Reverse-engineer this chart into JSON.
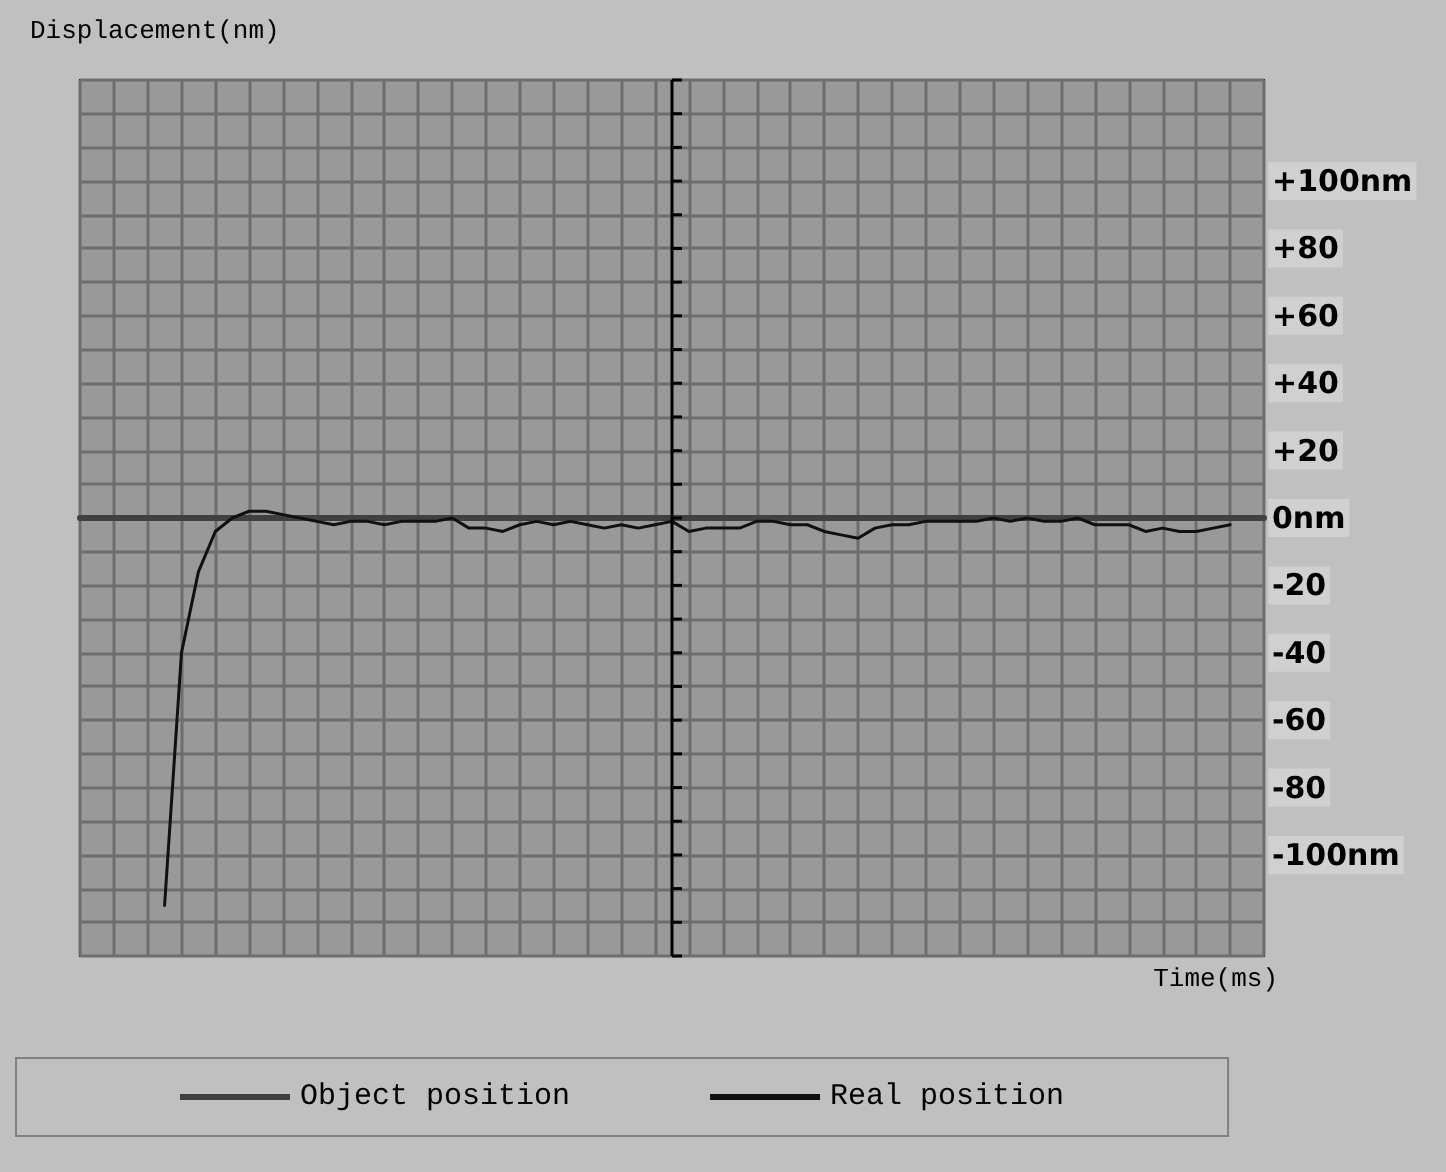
{
  "chart_data": {
    "type": "line",
    "xlabel": "Time(ms)",
    "ylabel": "Displacement(nm)",
    "categories": [
      null,
      null,
      null,
      null,
      null,
      null,
      null,
      null,
      null,
      null,
      null,
      null,
      null,
      null,
      null,
      null,
      null,
      null,
      null,
      null,
      null,
      null,
      null,
      null,
      null,
      null,
      null,
      null,
      null,
      null,
      null,
      null,
      null,
      null,
      null,
      null,
      null,
      null,
      null,
      null,
      null,
      null,
      null,
      null,
      null,
      null,
      null,
      null,
      null,
      null,
      null,
      null,
      null,
      null,
      null,
      null,
      null,
      null,
      null,
      null,
      null,
      null,
      null,
      null,
      null,
      null,
      null,
      null,
      null,
      null,
      null
    ],
    "series": [
      {
        "name": "Object position",
        "color": "#404040",
        "values": [
          0,
          0,
          0,
          0,
          0,
          0,
          0,
          0,
          0,
          0,
          0,
          0,
          0,
          0,
          0,
          0,
          0,
          0,
          0,
          0,
          0,
          0,
          0,
          0,
          0,
          0,
          0,
          0,
          0,
          0,
          0,
          0,
          0,
          0,
          0,
          0,
          0,
          0,
          0,
          0,
          0,
          0,
          0,
          0,
          0,
          0,
          0,
          0,
          0,
          0,
          0,
          0,
          0,
          0,
          0,
          0,
          0,
          0,
          0,
          0,
          0,
          0,
          0,
          0,
          0,
          0,
          0,
          0,
          0,
          0,
          0
        ]
      },
      {
        "name": "Real position",
        "color": "#101010",
        "values": [
          null,
          null,
          null,
          null,
          null,
          -115,
          -40,
          -16,
          -4,
          0,
          2,
          2,
          1,
          0,
          -1,
          -2,
          -1,
          -1,
          -2,
          -1,
          -1,
          -1,
          0,
          -3,
          -3,
          -4,
          -2,
          -1,
          -2,
          -1,
          -2,
          -3,
          -2,
          -3,
          -2,
          -1,
          -4,
          -3,
          -3,
          -3,
          -1,
          -1,
          -2,
          -2,
          -4,
          -5,
          -6,
          -3,
          -2,
          -2,
          -1,
          -1,
          -1,
          -1,
          0,
          -1,
          0,
          -1,
          -1,
          0,
          -2,
          -2,
          -2,
          -4,
          -3,
          -4,
          -4,
          -3,
          -2,
          null,
          null
        ]
      }
    ],
    "ylim": [
      -130,
      130
    ],
    "yticks": [
      {
        "value": -130,
        "label": null
      },
      {
        "value": -120,
        "label": null
      },
      {
        "value": -110,
        "label": null
      },
      {
        "value": -100,
        "label": "-100nm"
      },
      {
        "value": -90,
        "label": null
      },
      {
        "value": -80,
        "label": "-80"
      },
      {
        "value": -70,
        "label": null
      },
      {
        "value": -60,
        "label": "-60"
      },
      {
        "value": -50,
        "label": null
      },
      {
        "value": -40,
        "label": "-40"
      },
      {
        "value": -30,
        "label": null
      },
      {
        "value": -20,
        "label": "-20"
      },
      {
        "value": -10,
        "label": null
      },
      {
        "value": 0,
        "label": "0nm"
      },
      {
        "value": 10,
        "label": null
      },
      {
        "value": 20,
        "label": "+20"
      },
      {
        "value": 30,
        "label": null
      },
      {
        "value": 40,
        "label": "+40"
      },
      {
        "value": 50,
        "label": null
      },
      {
        "value": 60,
        "label": "+60"
      },
      {
        "value": 70,
        "label": null
      },
      {
        "value": 80,
        "label": "+80"
      },
      {
        "value": 90,
        "label": null
      },
      {
        "value": 100,
        "label": "+100nm"
      },
      {
        "value": 110,
        "label": null
      },
      {
        "value": 120,
        "label": null
      },
      {
        "value": 130,
        "label": null
      }
    ],
    "grid": true,
    "legend": "bottom",
    "line_style": "solid"
  }
}
